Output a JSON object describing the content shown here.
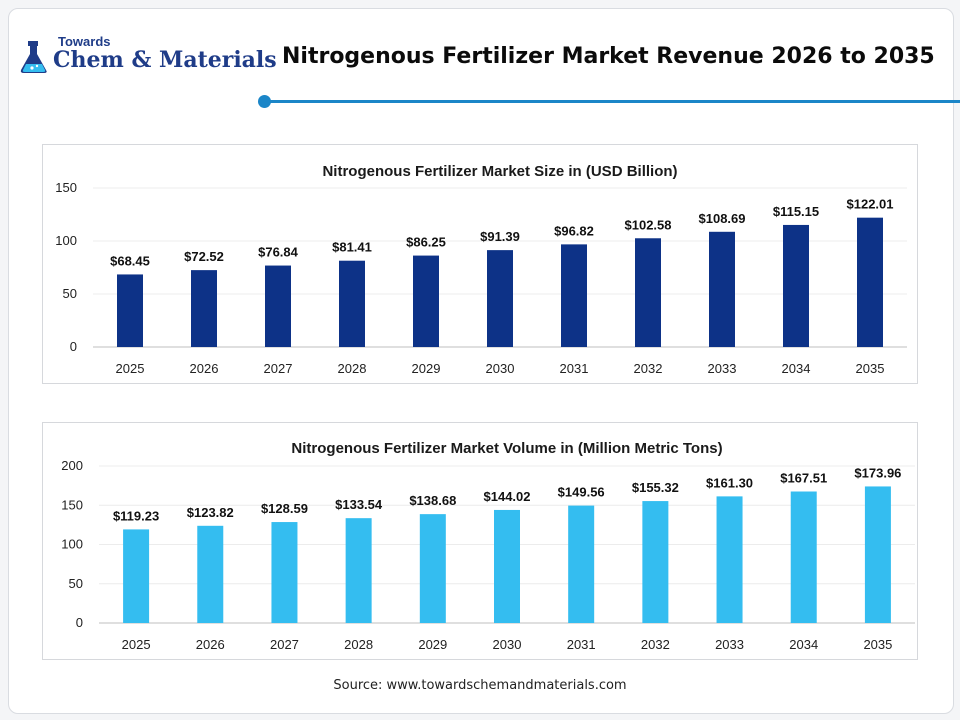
{
  "header": {
    "logo_small": "Towards",
    "logo_big": "Chem & Materials",
    "title": "Nitrogenous Fertilizer Market Revenue 2026 to 2035"
  },
  "colors": {
    "accent": "#1b86c8",
    "bar_size": "#0d3287",
    "bar_volume": "#34bdf0",
    "logo": "#1f3c88"
  },
  "chart_data": [
    {
      "type": "bar",
      "title": "Nitrogenous Fertilizer Market Size in (USD Billion)",
      "categories": [
        "2025",
        "2026",
        "2027",
        "2028",
        "2029",
        "2030",
        "2031",
        "2032",
        "2033",
        "2034",
        "2035"
      ],
      "values": [
        68.45,
        72.52,
        76.84,
        81.41,
        86.25,
        91.39,
        96.82,
        102.58,
        108.69,
        115.15,
        122.01
      ],
      "labels": [
        "$68.45",
        "$72.52",
        "$76.84",
        "$81.41",
        "$86.25",
        "$91.39",
        "$96.82",
        "$102.58",
        "$108.69",
        "$115.15",
        "$122.01"
      ],
      "yticks": [
        0,
        50,
        100,
        150
      ],
      "ylim": [
        0,
        150
      ],
      "xlabel": "",
      "ylabel": "",
      "grid": true,
      "color": "#0d3287"
    },
    {
      "type": "bar",
      "title": "Nitrogenous Fertilizer Market Volume in (Million Metric Tons)",
      "categories": [
        "2025",
        "2026",
        "2027",
        "2028",
        "2029",
        "2030",
        "2031",
        "2032",
        "2033",
        "2034",
        "2035"
      ],
      "values": [
        119.23,
        123.82,
        128.59,
        133.54,
        138.68,
        144.02,
        149.56,
        155.32,
        161.3,
        167.51,
        173.96
      ],
      "labels": [
        "$119.23",
        "$123.82",
        "$128.59",
        "$133.54",
        "$138.68",
        "$144.02",
        "$149.56",
        "$155.32",
        "$161.30",
        "$167.51",
        "$173.96"
      ],
      "yticks": [
        0,
        50,
        100,
        150,
        200
      ],
      "ylim": [
        0,
        200
      ],
      "xlabel": "",
      "ylabel": "",
      "grid": true,
      "color": "#34bdf0"
    }
  ],
  "footer": {
    "source": "Source: www.towardschemandmaterials.com"
  }
}
